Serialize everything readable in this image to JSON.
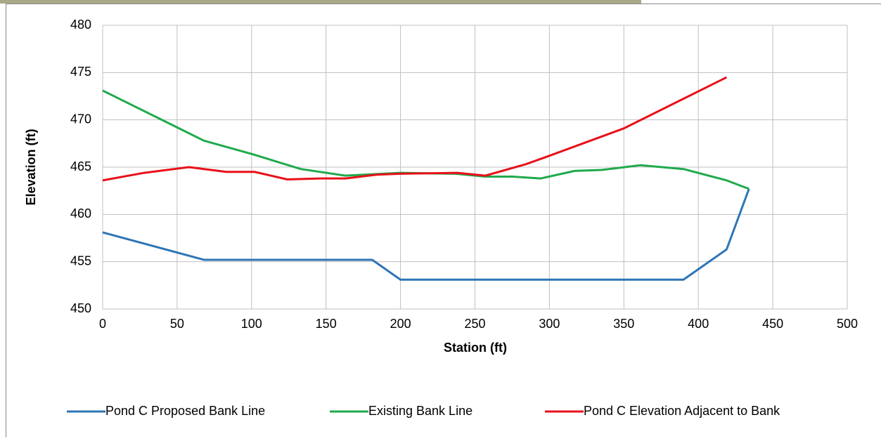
{
  "chart_data": {
    "type": "line",
    "xlabel": "Station (ft)",
    "ylabel": "Elevation (ft)",
    "xlim": [
      0,
      500
    ],
    "xticks": [
      0,
      50,
      100,
      150,
      200,
      250,
      300,
      350,
      400,
      450,
      500
    ],
    "ylim": [
      450,
      480
    ],
    "yticks": [
      450,
      455,
      460,
      465,
      470,
      475,
      480
    ],
    "grid": true,
    "legend": "bottom",
    "series": [
      {
        "name": "Pond C Proposed Bank Line",
        "color": "#2e75b6",
        "x": [
          0,
          68,
          181,
          200,
          390,
          419,
          434
        ],
        "values": [
          458.1,
          455.2,
          455.2,
          453.1,
          453.1,
          456.3,
          462.7
        ]
      },
      {
        "name": "Existing Bank Line",
        "color": "#1faa4b",
        "x": [
          0,
          68,
          100,
          133,
          163,
          200,
          237,
          257,
          275,
          294,
          317,
          335,
          361,
          390,
          419,
          434
        ],
        "values": [
          473.1,
          467.8,
          466.4,
          464.8,
          464.1,
          464.4,
          464.3,
          464.0,
          464.0,
          463.8,
          464.6,
          464.7,
          465.2,
          464.8,
          463.6,
          462.7
        ]
      },
      {
        "name": "Pond C Elevation Adjacent to Bank",
        "color": "#e8101a",
        "x": [
          0,
          28,
          58,
          83,
          102,
          124,
          146,
          163,
          184,
          200,
          238,
          257,
          284,
          300,
          350,
          419
        ],
        "values": [
          463.6,
          464.4,
          465.0,
          464.5,
          464.5,
          463.7,
          463.8,
          463.8,
          464.2,
          464.3,
          464.4,
          464.1,
          465.3,
          466.2,
          469.1,
          474.5
        ]
      }
    ]
  }
}
